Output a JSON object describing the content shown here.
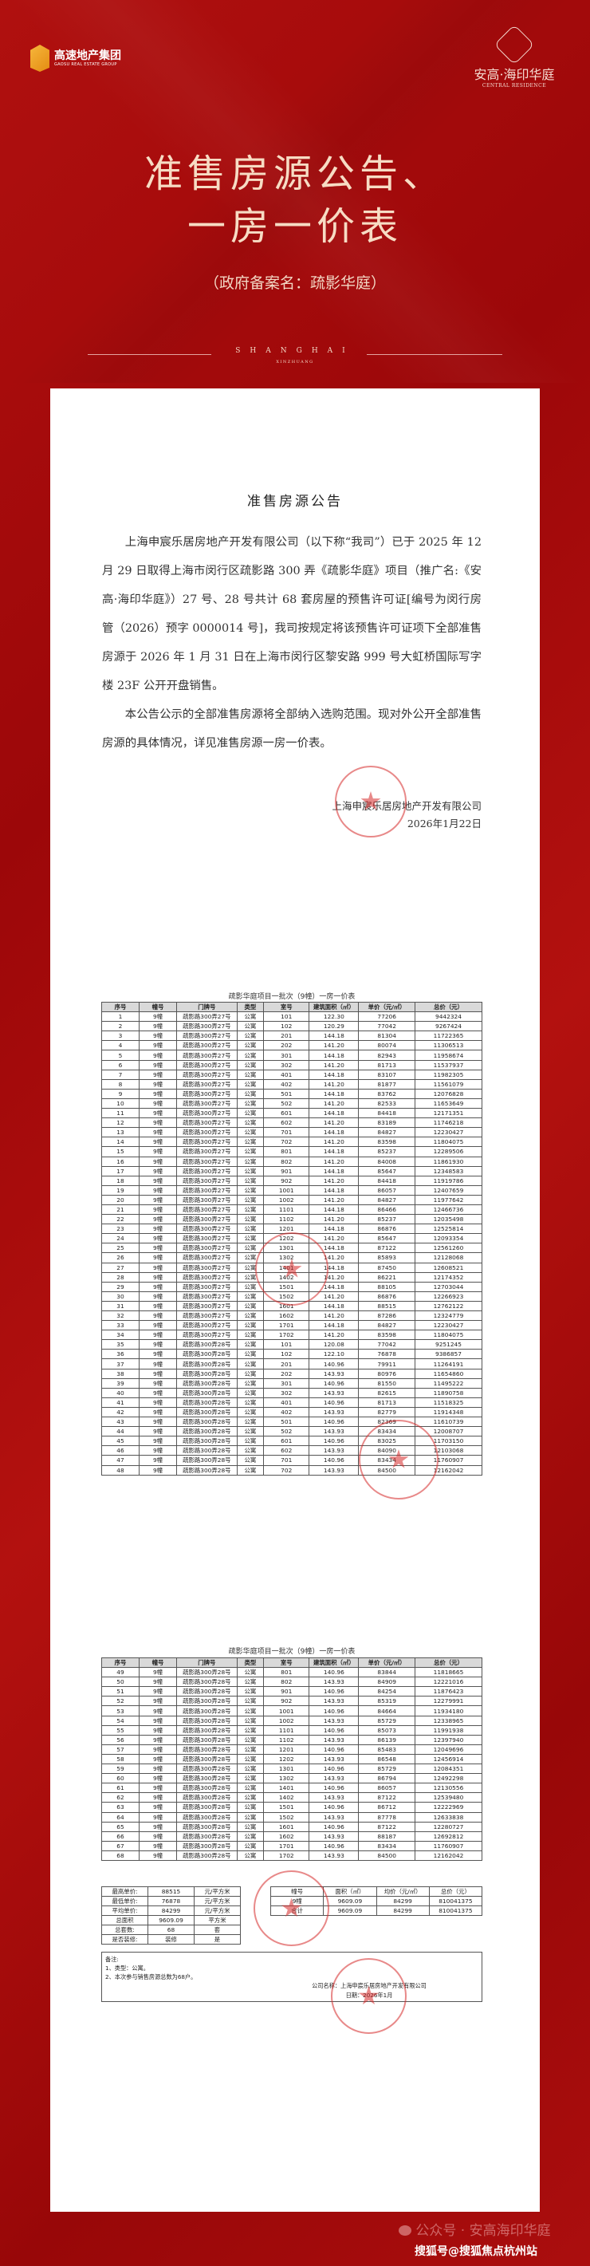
{
  "header": {
    "group_logo_cn": "高速地产集团",
    "group_logo_en": "GAOSU REAL ESTATE GROUP",
    "project_logo_cn": "安高·海印华庭",
    "project_logo_en": "CENTRAL RESIDENCE"
  },
  "hero": {
    "title_line1": "准售房源公告、",
    "title_line2": "一房一价表",
    "subtitle": "（政府备案名：疏影华庭）",
    "city": "SHANGHAI",
    "district": "XINZHUANG"
  },
  "notice": {
    "title": "准售房源公告",
    "para1": "上海申宸乐居房地产开发有限公司（以下称“我司”）已于 2025 年 12 月 29 日取得上海市闵行区疏影路 300 弄《疏影华庭》项目（推广名:《安高·海印华庭》）27 号、28 号共计 68 套房屋的预售许可证[编号为闵行房管（2026）预字 0000014 号]，我司按规定将该预售许可证项下全部准售房源于 2026 年 1 月 31 日在上海市闵行区黎安路 999 号大虹桥国际写字楼 23F 公开开盘销售。",
    "para2": "本公告公示的全部准售房源将全部纳入选购范围。现对外公开全部准售房源的具体情况，详见准售房源一房一价表。",
    "signature_company": "上海申宸乐居房地产开发有限公司",
    "signature_date": "2026年1月22日"
  },
  "price_table": {
    "caption": "疏影华庭项目一批次（9幢）一房一价表",
    "columns": [
      "序号",
      "幢号",
      "门牌号",
      "类型",
      "室号",
      "建筑面积（㎡）",
      "单价（元/㎡）",
      "总价（元）"
    ],
    "building": "9幢",
    "type": "公寓",
    "door_27": "疏影路300弄27号",
    "door_28": "疏影路300弄28号",
    "rows": [
      [
        "1",
        "27",
        "101",
        "122.30",
        "77206",
        "9442324"
      ],
      [
        "2",
        "27",
        "102",
        "120.29",
        "77042",
        "9267424"
      ],
      [
        "3",
        "27",
        "201",
        "144.18",
        "81304",
        "11722365"
      ],
      [
        "4",
        "27",
        "202",
        "141.20",
        "80074",
        "11306513"
      ],
      [
        "5",
        "27",
        "301",
        "144.18",
        "82943",
        "11958674"
      ],
      [
        "6",
        "27",
        "302",
        "141.20",
        "81713",
        "11537937"
      ],
      [
        "7",
        "27",
        "401",
        "144.18",
        "83107",
        "11982305"
      ],
      [
        "8",
        "27",
        "402",
        "141.20",
        "81877",
        "11561079"
      ],
      [
        "9",
        "27",
        "501",
        "144.18",
        "83762",
        "12076828"
      ],
      [
        "10",
        "27",
        "502",
        "141.20",
        "82533",
        "11653649"
      ],
      [
        "11",
        "27",
        "601",
        "144.18",
        "84418",
        "12171351"
      ],
      [
        "12",
        "27",
        "602",
        "141.20",
        "83189",
        "11746218"
      ],
      [
        "13",
        "27",
        "701",
        "144.18",
        "84827",
        "12230427"
      ],
      [
        "14",
        "27",
        "702",
        "141.20",
        "83598",
        "11804075"
      ],
      [
        "15",
        "27",
        "801",
        "144.18",
        "85237",
        "12289506"
      ],
      [
        "16",
        "27",
        "802",
        "141.20",
        "84008",
        "11861930"
      ],
      [
        "17",
        "27",
        "901",
        "144.18",
        "85647",
        "12348583"
      ],
      [
        "18",
        "27",
        "902",
        "141.20",
        "84418",
        "11919786"
      ],
      [
        "19",
        "27",
        "1001",
        "144.18",
        "86057",
        "12407659"
      ],
      [
        "20",
        "27",
        "1002",
        "141.20",
        "84827",
        "11977642"
      ],
      [
        "21",
        "27",
        "1101",
        "144.18",
        "86466",
        "12466736"
      ],
      [
        "22",
        "27",
        "1102",
        "141.20",
        "85237",
        "12035498"
      ],
      [
        "23",
        "27",
        "1201",
        "144.18",
        "86876",
        "12525814"
      ],
      [
        "24",
        "27",
        "1202",
        "141.20",
        "85647",
        "12093354"
      ],
      [
        "25",
        "27",
        "1301",
        "144.18",
        "87122",
        "12561260"
      ],
      [
        "26",
        "27",
        "1302",
        "141.20",
        "85893",
        "12128068"
      ],
      [
        "27",
        "27",
        "1401",
        "144.18",
        "87450",
        "12608521"
      ],
      [
        "28",
        "27",
        "1402",
        "141.20",
        "86221",
        "12174352"
      ],
      [
        "29",
        "27",
        "1501",
        "144.18",
        "88105",
        "12703044"
      ],
      [
        "30",
        "27",
        "1502",
        "141.20",
        "86876",
        "12266923"
      ],
      [
        "31",
        "27",
        "1601",
        "144.18",
        "88515",
        "12762122"
      ],
      [
        "32",
        "27",
        "1602",
        "141.20",
        "87286",
        "12324779"
      ],
      [
        "33",
        "27",
        "1701",
        "144.18",
        "84827",
        "12230427"
      ],
      [
        "34",
        "27",
        "1702",
        "141.20",
        "83598",
        "11804075"
      ],
      [
        "35",
        "28",
        "101",
        "120.08",
        "77042",
        "9251245"
      ],
      [
        "36",
        "28",
        "102",
        "122.10",
        "76878",
        "9386857"
      ],
      [
        "37",
        "28",
        "201",
        "140.96",
        "79911",
        "11264191"
      ],
      [
        "38",
        "28",
        "202",
        "143.93",
        "80976",
        "11654860"
      ],
      [
        "39",
        "28",
        "301",
        "140.96",
        "81550",
        "11495222"
      ],
      [
        "40",
        "28",
        "302",
        "143.93",
        "82615",
        "11890758"
      ],
      [
        "41",
        "28",
        "401",
        "140.96",
        "81713",
        "11518325"
      ],
      [
        "42",
        "28",
        "402",
        "143.93",
        "82779",
        "11914348"
      ],
      [
        "43",
        "28",
        "501",
        "140.96",
        "82369",
        "11610739"
      ],
      [
        "44",
        "28",
        "502",
        "143.93",
        "83434",
        "12008707"
      ],
      [
        "45",
        "28",
        "601",
        "140.96",
        "83025",
        "11703150"
      ],
      [
        "46",
        "28",
        "602",
        "143.93",
        "84090",
        "12103068"
      ],
      [
        "47",
        "28",
        "701",
        "140.96",
        "83434",
        "11760907"
      ],
      [
        "48",
        "28",
        "702",
        "143.93",
        "84500",
        "12162042"
      ],
      [
        "49",
        "28",
        "801",
        "140.96",
        "83844",
        "11818665"
      ],
      [
        "50",
        "28",
        "802",
        "143.93",
        "84909",
        "12221016"
      ],
      [
        "51",
        "28",
        "901",
        "140.96",
        "84254",
        "11876423"
      ],
      [
        "52",
        "28",
        "902",
        "143.93",
        "85319",
        "12279991"
      ],
      [
        "53",
        "28",
        "1001",
        "140.96",
        "84664",
        "11934180"
      ],
      [
        "54",
        "28",
        "1002",
        "143.93",
        "85729",
        "12338965"
      ],
      [
        "55",
        "28",
        "1101",
        "140.96",
        "85073",
        "11991938"
      ],
      [
        "56",
        "28",
        "1102",
        "143.93",
        "86139",
        "12397940"
      ],
      [
        "57",
        "28",
        "1201",
        "140.96",
        "85483",
        "12049696"
      ],
      [
        "58",
        "28",
        "1202",
        "143.93",
        "86548",
        "12456914"
      ],
      [
        "59",
        "28",
        "1301",
        "140.96",
        "85729",
        "12084351"
      ],
      [
        "60",
        "28",
        "1302",
        "143.93",
        "86794",
        "12492298"
      ],
      [
        "61",
        "28",
        "1401",
        "140.96",
        "86057",
        "12130556"
      ],
      [
        "62",
        "28",
        "1402",
        "143.93",
        "87122",
        "12539480"
      ],
      [
        "63",
        "28",
        "1501",
        "140.96",
        "86712",
        "12222969"
      ],
      [
        "64",
        "28",
        "1502",
        "143.93",
        "87778",
        "12633838"
      ],
      [
        "65",
        "28",
        "1601",
        "140.96",
        "87122",
        "12280727"
      ],
      [
        "66",
        "28",
        "1602",
        "143.93",
        "88187",
        "12692812"
      ],
      [
        "67",
        "28",
        "1701",
        "140.96",
        "83434",
        "11760907"
      ],
      [
        "68",
        "28",
        "1702",
        "143.93",
        "84500",
        "12162042"
      ]
    ]
  },
  "summary": {
    "left": [
      [
        "最高单价:",
        "88515",
        "元/平方米"
      ],
      [
        "最低单价:",
        "76878",
        "元/平方米"
      ],
      [
        "平均单价:",
        "84299",
        "元/平方米"
      ],
      [
        "总面积",
        "9609.09",
        "平方米"
      ],
      [
        "总套数:",
        "68",
        "套"
      ],
      [
        "是否装修:",
        "装修",
        "是"
      ]
    ],
    "right_columns": [
      "幢号",
      "面积（㎡）",
      "均价（元/㎡）",
      "总价（元）"
    ],
    "right_rows": [
      [
        "9幢",
        "9609.09",
        "84299",
        "810041375"
      ],
      [
        "合计",
        "9609.09",
        "84299",
        "810041375"
      ]
    ]
  },
  "notes": {
    "label": "备注:",
    "items": [
      "1、类型：公寓。",
      "2、本次参与销售房源总数为68户。"
    ],
    "company": "公司名称：上海申宸乐居房地产开发有限公司",
    "date": "日期：2026年1月"
  },
  "footer": {
    "wechat_watermark": "公众号 · 安高海印华庭",
    "sohu_watermark": "搜狐号@搜狐焦点杭州站"
  },
  "colors": {
    "background_red": "#a30a0c",
    "title_gold": "#f7dcc4",
    "stamp_red": "#d62828"
  }
}
